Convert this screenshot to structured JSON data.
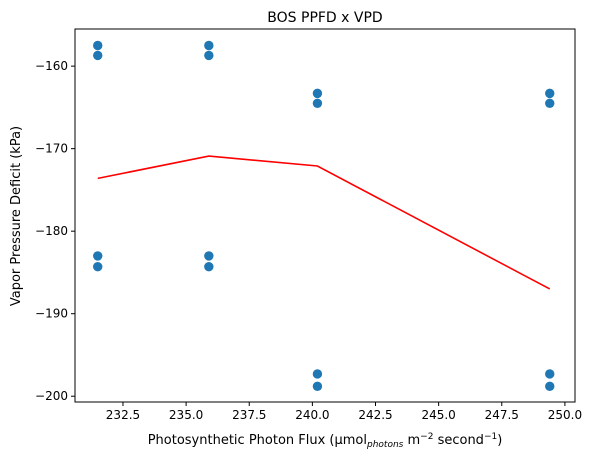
{
  "chart_data": {
    "type": "scatter",
    "title": "BOS PPFD x VPD",
    "xlabel": {
      "main": "Photosynthetic Photon Flux (μmol",
      "sub": "photons",
      "mid": " m",
      "sup1": "−2",
      "mid2": " second",
      "sup2": "−1",
      "end": ")"
    },
    "ylabel": "Vapor Pressure Deficit (kPa)",
    "xlim": [
      230.6,
      250.4
    ],
    "ylim": [
      -200.7,
      -155.5
    ],
    "x_ticks": [
      232.5,
      235.0,
      237.5,
      240.0,
      242.5,
      245.0,
      247.5,
      250.0
    ],
    "x_tick_labels": [
      "232.5",
      "235.0",
      "237.5",
      "240.0",
      "242.5",
      "245.0",
      "247.5",
      "250.0"
    ],
    "y_ticks": [
      -160,
      -170,
      -180,
      -190,
      -200
    ],
    "y_tick_labels": [
      "−160",
      "−170",
      "−180",
      "−190",
      "−200"
    ],
    "grid": false,
    "series": [
      {
        "kind": "scatter",
        "color": "#1f77b4",
        "points": [
          [
            231.5,
            -157.5
          ],
          [
            231.5,
            -158.7
          ],
          [
            231.5,
            -183.0
          ],
          [
            231.5,
            -184.3
          ],
          [
            235.9,
            -157.5
          ],
          [
            235.9,
            -158.7
          ],
          [
            235.9,
            -183.0
          ],
          [
            235.9,
            -184.3
          ],
          [
            240.2,
            -163.3
          ],
          [
            240.2,
            -164.5
          ],
          [
            240.2,
            -197.3
          ],
          [
            240.2,
            -198.8
          ],
          [
            249.4,
            -163.3
          ],
          [
            249.4,
            -164.5
          ],
          [
            249.4,
            -197.3
          ],
          [
            249.4,
            -198.8
          ]
        ]
      },
      {
        "kind": "line",
        "color": "#ff0000",
        "points": [
          [
            231.5,
            -173.6
          ],
          [
            235.9,
            -170.9
          ],
          [
            240.2,
            -172.1
          ],
          [
            249.4,
            -187.0
          ]
        ]
      }
    ]
  }
}
